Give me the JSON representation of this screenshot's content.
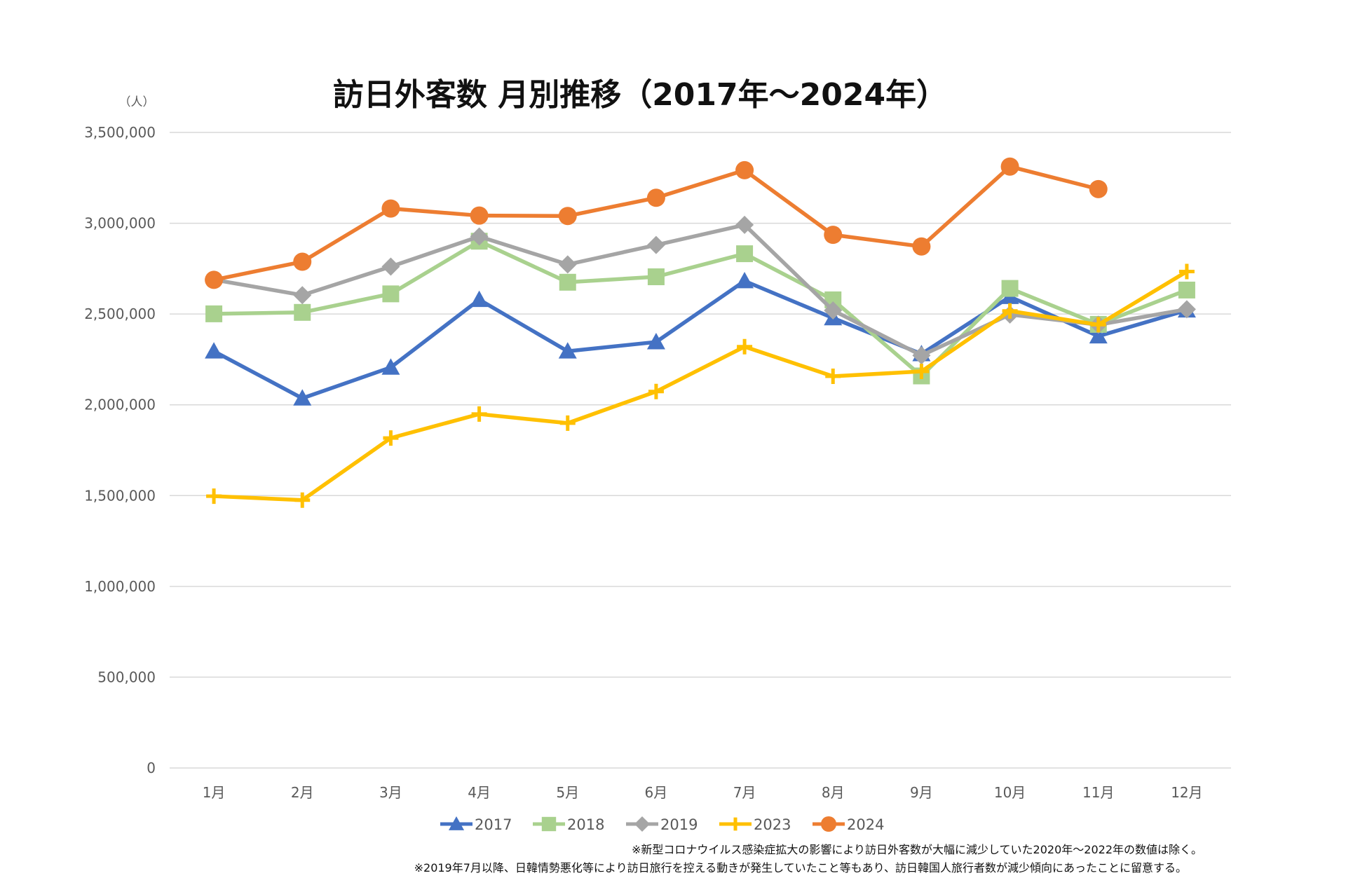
{
  "chart_data": {
    "type": "line",
    "title": "訪日外客数 月別推移（2017年～2024年）",
    "ylabel": "（人）",
    "xlabel": "",
    "ylim": [
      0,
      3500000
    ],
    "yticks": [
      0,
      500000,
      1000000,
      1500000,
      2000000,
      2500000,
      3000000,
      3500000
    ],
    "ytick_labels": [
      "0",
      "500,000",
      "1,000,000",
      "1,500,000",
      "2,000,000",
      "2,500,000",
      "3,000,000",
      "3,500,000"
    ],
    "grid": true,
    "legend_position": "bottom",
    "categories": [
      "1月",
      "2月",
      "3月",
      "4月",
      "5月",
      "6月",
      "7月",
      "8月",
      "9月",
      "10月",
      "11月",
      "12月"
    ],
    "series": [
      {
        "name": "2017",
        "color": "#4472C4",
        "marker": "triangle",
        "values": [
          2295000,
          2036000,
          2206000,
          2579000,
          2295000,
          2346000,
          2682000,
          2478000,
          2280000,
          2595000,
          2378000,
          2521000
        ]
      },
      {
        "name": "2018",
        "color": "#A9D18E",
        "marker": "square",
        "values": [
          2501000,
          2509000,
          2611000,
          2901000,
          2675000,
          2705000,
          2832000,
          2578000,
          2159000,
          2641000,
          2443000,
          2632000
        ]
      },
      {
        "name": "2019",
        "color": "#A5A5A5",
        "marker": "diamond",
        "values": [
          2689000,
          2604000,
          2761000,
          2927000,
          2773000,
          2880000,
          2991000,
          2520000,
          2272000,
          2497000,
          2441000,
          2526000
        ]
      },
      {
        "name": "2023",
        "color": "#FFC000",
        "marker": "plus",
        "values": [
          1497000,
          1475000,
          1817000,
          1949000,
          1899000,
          2073000,
          2320000,
          2157000,
          2184000,
          2517000,
          2441000,
          2734000
        ]
      },
      {
        "name": "2024",
        "color": "#ED7D31",
        "marker": "circle",
        "values": [
          2688000,
          2788000,
          3081000,
          3042000,
          3040000,
          3140000,
          3292000,
          2936000,
          2872000,
          3312000,
          3188000,
          null
        ]
      }
    ]
  },
  "notes": [
    "※新型コロナウイルス感染症拡大の影響により訪日外客数が大幅に減少していた2020年～2022年の数値は除く。",
    "※2019年7月以降、日韓情勢悪化等により訪日旅行を控える動きが発生していたこと等もあり、訪日韓国人旅行者数が減少傾向にあったことに留意する。"
  ]
}
